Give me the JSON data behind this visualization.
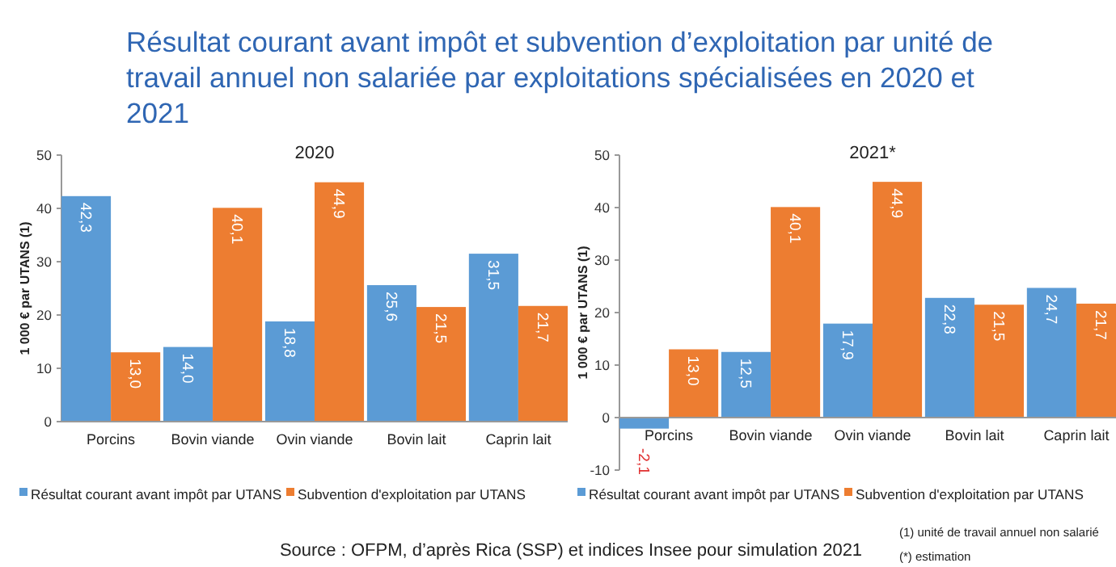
{
  "chart_data": [
    {
      "type": "other",
      "title": "Résultat courant avant impôt et subvention d’exploitation par unité de travail annuel non salariée par exploitations spécialisées en 2020 et 2021",
      "annotations": [
        "Source : OFPM, d’après Rica (SSP) et indices Insee pour simulation 2021",
        "(1) unité de travail annuel non salarié",
        "(*) estimation"
      ]
    },
    {
      "type": "bar",
      "title": "2020",
      "ylabel": "1 000 € par UTANS (1)",
      "categories": [
        "Porcins",
        "Bovin viande",
        "Ovin viande",
        "Bovin lait",
        "Caprin lait"
      ],
      "ylim": [
        0,
        50
      ],
      "yticks": [
        0,
        10,
        20,
        30,
        40,
        50
      ],
      "grid": false,
      "legend": "bottom",
      "series": [
        {
          "name": "Résultat courant avant impôt par UTANS",
          "color": "#5b9bd5",
          "values": [
            42.3,
            14.0,
            18.8,
            25.6,
            31.5
          ],
          "value_labels": [
            "42,3",
            "14,0",
            "18,8",
            "25,6",
            "31,5"
          ]
        },
        {
          "name": "Subvention d'exploitation par UTANS",
          "color": "#ed7d31",
          "values": [
            13.0,
            40.1,
            44.9,
            21.5,
            21.7
          ],
          "value_labels": [
            "13,0",
            "40,1",
            "44,9",
            "21,5",
            "21,7"
          ]
        }
      ]
    },
    {
      "type": "bar",
      "title": "2021*",
      "ylabel": "1 000 € par UTANS (1)",
      "categories": [
        "Porcins",
        "Bovin viande",
        "Ovin viande",
        "Bovin lait",
        "Caprin lait"
      ],
      "ylim": [
        -10,
        50
      ],
      "yticks": [
        -10,
        0,
        10,
        20,
        30,
        40,
        50
      ],
      "grid": false,
      "legend": "bottom",
      "series": [
        {
          "name": "Résultat courant avant impôt par UTANS",
          "color": "#5b9bd5",
          "values": [
            -2.1,
            12.5,
            17.9,
            22.8,
            24.7
          ],
          "value_labels": [
            "-2,1",
            "12,5",
            "17,9",
            "22,8",
            "24,7"
          ]
        },
        {
          "name": "Subvention d'exploitation par UTANS",
          "color": "#ed7d31",
          "values": [
            13.0,
            40.1,
            44.9,
            21.5,
            21.7
          ],
          "value_labels": [
            "13,0",
            "40,1",
            "44,9",
            "21,5",
            "21,7"
          ]
        }
      ]
    }
  ]
}
